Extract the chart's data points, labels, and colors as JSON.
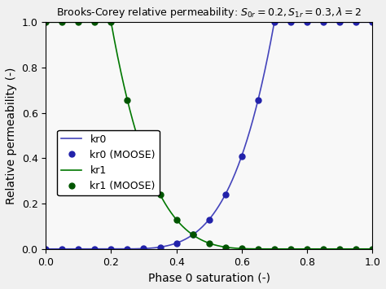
{
  "title": "Brooks-Corey relative permeability: $S_{0r} = 0.2, S_{1r} = 0.3, \\lambda = 2$",
  "xlabel": "Phase 0 saturation (-)",
  "ylabel": "Relative permeability (-)",
  "S0r": 0.2,
  "S1r": 0.3,
  "lam": 2.0,
  "xlim": [
    0.0,
    1.0
  ],
  "ylim": [
    0.0,
    1.0
  ],
  "line_color_kr0": "#4444bb",
  "line_color_kr1": "#007700",
  "dot_color_kr0": "#2222aa",
  "dot_color_kr1": "#005500",
  "n_moose_points": 21,
  "legend_labels": [
    "kr0",
    "kr0 (MOOSE)",
    "kr1",
    "kr1 (MOOSE)"
  ],
  "figsize": [
    4.74,
    3.55
  ],
  "dpi": 100
}
